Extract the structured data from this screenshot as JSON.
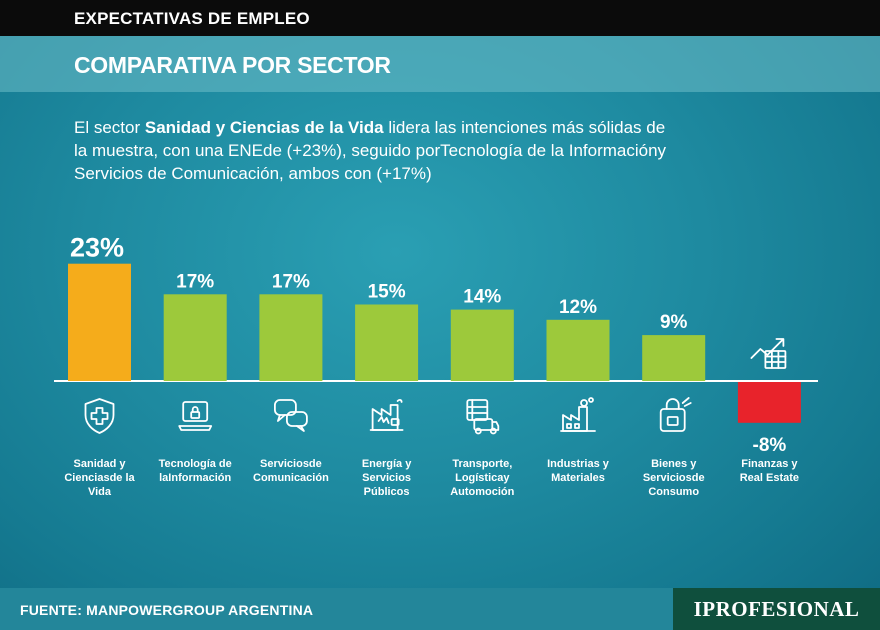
{
  "header": {
    "section": "EXPECTATIVAS DE EMPLEO",
    "title": "COMPARATIVA POR SECTOR"
  },
  "description": {
    "part1": "El sector ",
    "highlight": "Sanidad y Ciencias de la Vida",
    "part2": " lidera las intenciones más sólidas de la muestra, con una ENEde (+23%), seguido porTecnología de la Informacióny Servicios de Comunicación, ambos con (+17%)"
  },
  "chart_data": {
    "type": "bar",
    "categories": [
      "Sanidad y Ciencias de la Vida",
      "Tecnología de la Información",
      "Servicios de Comunicación",
      "Energía y Servicios Públicos",
      "Transporte, Logística y Automoción",
      "Industrias y Materiales",
      "Bienes y Servicios de Consumo",
      "Finanzas y Real Estate"
    ],
    "category_lines": [
      [
        "Sanidad y",
        "Cienciasde la",
        "Vida"
      ],
      [
        "Tecnología de",
        "laInformación"
      ],
      [
        "Serviciosde",
        "Comunicación"
      ],
      [
        "Energía y",
        "Servicios",
        "Públicos"
      ],
      [
        "Transporte,",
        "Logísticay",
        "Automoción"
      ],
      [
        "Industrias y",
        "Materiales"
      ],
      [
        "Bienes y",
        "Serviciosde",
        "Consumo"
      ],
      [
        "Finanzas y",
        "Real Estate"
      ]
    ],
    "values": [
      23,
      17,
      17,
      15,
      14,
      12,
      9,
      -8
    ],
    "labels": [
      "23%",
      "17%",
      "17%",
      "15%",
      "14%",
      "12%",
      "9%",
      "-8%"
    ],
    "icons": [
      "health-shield-icon",
      "laptop-lock-icon",
      "chat-bubbles-icon",
      "energy-factory-icon",
      "delivery-truck-icon",
      "factory-icon",
      "shopping-bag-icon",
      "finance-chart-icon"
    ],
    "ylim": [
      -8,
      23
    ],
    "grid": false,
    "legend": "none",
    "colors": {
      "leader": "#f5ac1b",
      "positive": "#9dc93b",
      "negative": "#e8232b"
    }
  },
  "footer": {
    "source": "FUENTE: MANPOWERGROUP ARGENTINA",
    "brand": "IPROFESIONAL"
  }
}
